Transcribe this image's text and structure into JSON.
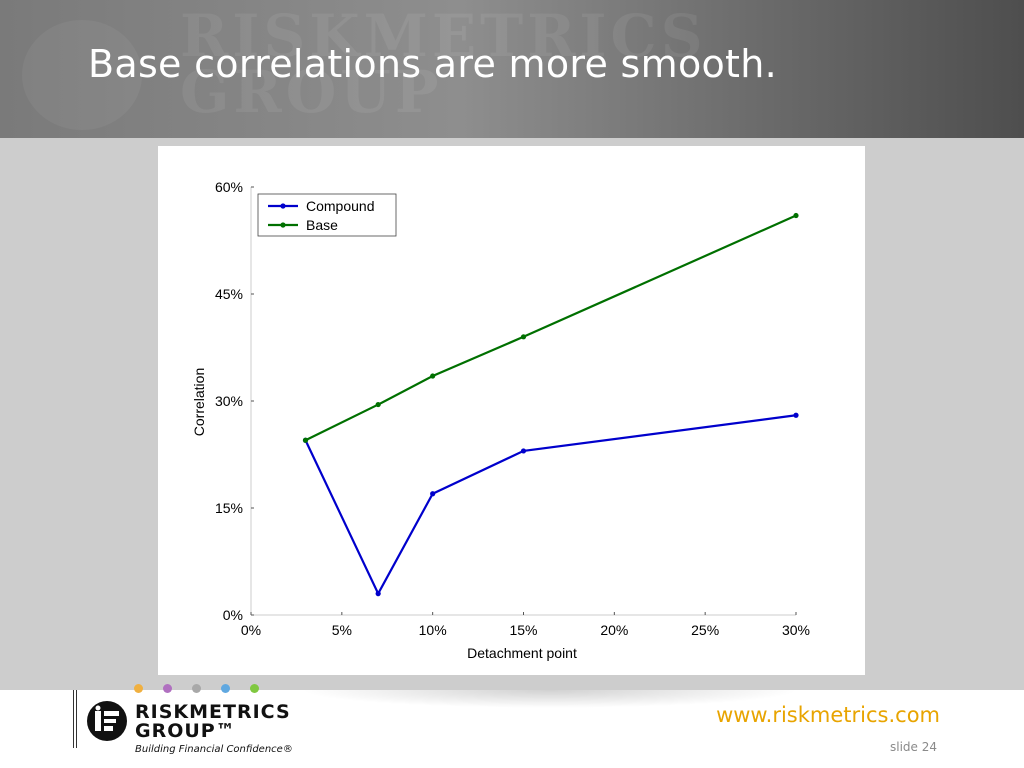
{
  "slide": {
    "title": "Base correlations are more smooth.",
    "watermark_line1": "RISKMETRICS",
    "watermark_line2": "GROUP",
    "slide_number": "slide 24"
  },
  "footer": {
    "logo_line1": "RISKMETRICS",
    "logo_line2": "GROUP™",
    "tagline": "Building Financial Confidence®",
    "url": "www.riskmetrics.com",
    "dot_colors": [
      "#f0b040",
      "#b070c0",
      "#a8a8a8",
      "#60a8e0",
      "#80c840"
    ]
  },
  "chart_data": {
    "type": "line",
    "xlabel": "Detachment point",
    "ylabel": "Correlation",
    "xlim": [
      0,
      30
    ],
    "ylim": [
      0,
      60
    ],
    "x_ticks": [
      "0%",
      "5%",
      "10%",
      "15%",
      "20%",
      "25%",
      "30%"
    ],
    "y_ticks": [
      "0%",
      "15%",
      "30%",
      "45%",
      "60%"
    ],
    "x_tick_values": [
      0,
      5,
      10,
      15,
      20,
      25,
      30
    ],
    "y_tick_values": [
      0,
      15,
      30,
      45,
      60
    ],
    "legend_position": "top-left",
    "grid": false,
    "series": [
      {
        "name": "Compound",
        "color": "#0000cc",
        "x": [
          3,
          7,
          10,
          15,
          30
        ],
        "y": [
          24.5,
          3,
          17,
          23,
          28
        ]
      },
      {
        "name": "Base",
        "color": "#007000",
        "x": [
          3,
          7,
          10,
          15,
          30
        ],
        "y": [
          24.5,
          29.5,
          33.5,
          39,
          56
        ]
      }
    ]
  }
}
